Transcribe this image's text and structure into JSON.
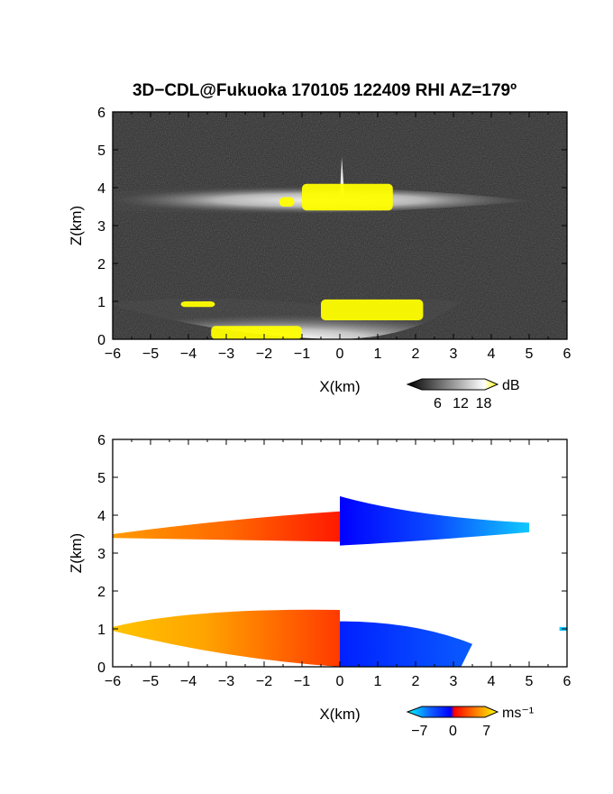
{
  "figure": {
    "title": "3D−CDL@Fukuoka 170105 122409 RHI AZ=179º"
  },
  "chart_data": [
    {
      "type": "heatmap",
      "panel": "top",
      "xlabel": "X(km)",
      "ylabel": "Z(km)",
      "xlim": [
        -6,
        6
      ],
      "ylim": [
        0,
        6
      ],
      "x_ticks": [
        -6,
        -5,
        -4,
        -3,
        -2,
        -1,
        0,
        1,
        2,
        3,
        4,
        5,
        6
      ],
      "y_ticks": [
        0,
        1,
        2,
        3,
        4,
        5,
        6
      ],
      "colorbar": {
        "unit": "dB",
        "ticks": [
          6,
          12,
          18
        ],
        "range": [
          0,
          20
        ],
        "colors": [
          "#000000",
          "#ffffff",
          "#ffff00"
        ]
      },
      "background_color": "#2a2a2a",
      "layers": [
        {
          "x_start": -6,
          "x_end": 5,
          "z_low": 3.3,
          "z_high": 4.0,
          "peak_x": 0.1,
          "peak_z": 3.7
        },
        {
          "x_start": -6,
          "x_end": 3.2,
          "z_low": 0.0,
          "z_high": 1.2,
          "peak_x": 0.0,
          "peak_z": 0.3
        }
      ],
      "saturated_regions": [
        {
          "x_start": -1.0,
          "x_end": 1.4,
          "z_low": 3.4,
          "z_high": 4.1
        },
        {
          "x_start": -1.6,
          "x_end": -1.2,
          "z_low": 3.5,
          "z_high": 3.75
        },
        {
          "x_start": -0.5,
          "x_end": 2.2,
          "z_low": 0.5,
          "z_high": 1.05
        },
        {
          "x_start": -4.2,
          "x_end": -3.3,
          "z_low": 0.85,
          "z_high": 1.0
        },
        {
          "x_start": -3.4,
          "x_end": -1.0,
          "z_low": 0.0,
          "z_high": 0.35
        }
      ]
    },
    {
      "type": "heatmap",
      "panel": "bottom",
      "xlabel": "X(km)",
      "ylabel": "Z(km)",
      "xlim": [
        -6,
        6
      ],
      "ylim": [
        0,
        6
      ],
      "x_ticks": [
        -6,
        -5,
        -4,
        -3,
        -2,
        -1,
        0,
        1,
        2,
        3,
        4,
        5,
        6
      ],
      "y_ticks": [
        0,
        1,
        2,
        3,
        4,
        5,
        6
      ],
      "colorbar": {
        "unit": "ms⁻¹",
        "ticks": [
          -7,
          0,
          7
        ],
        "range": [
          -8,
          8
        ],
        "colors": [
          "#00ffff",
          "#1060ff",
          "#0000ff",
          "#ff0000",
          "#ff7a00",
          "#ffff00"
        ]
      },
      "layers": [
        {
          "x_start": -6,
          "x_end": 0,
          "z_low": 3.3,
          "z_high": 4.0,
          "velocity_start": 6,
          "velocity_end": 2
        },
        {
          "x_start": 0,
          "x_end": 5,
          "z_low": 3.2,
          "z_high": 4.0,
          "velocity_start": -5,
          "velocity_end": -8
        },
        {
          "x_start": -6,
          "x_end": 0,
          "z_low": 0.0,
          "z_high": 1.5,
          "velocity_start": 6,
          "velocity_end": 3
        },
        {
          "x_start": 0,
          "x_end": 3.5,
          "z_low": 0.0,
          "z_high": 1.2,
          "velocity_start": -5,
          "velocity_end": -6
        },
        {
          "x_start": 5.8,
          "x_end": 6,
          "z_low": 0.95,
          "z_high": 1.05,
          "velocity_start": -8,
          "velocity_end": -8
        }
      ]
    }
  ]
}
